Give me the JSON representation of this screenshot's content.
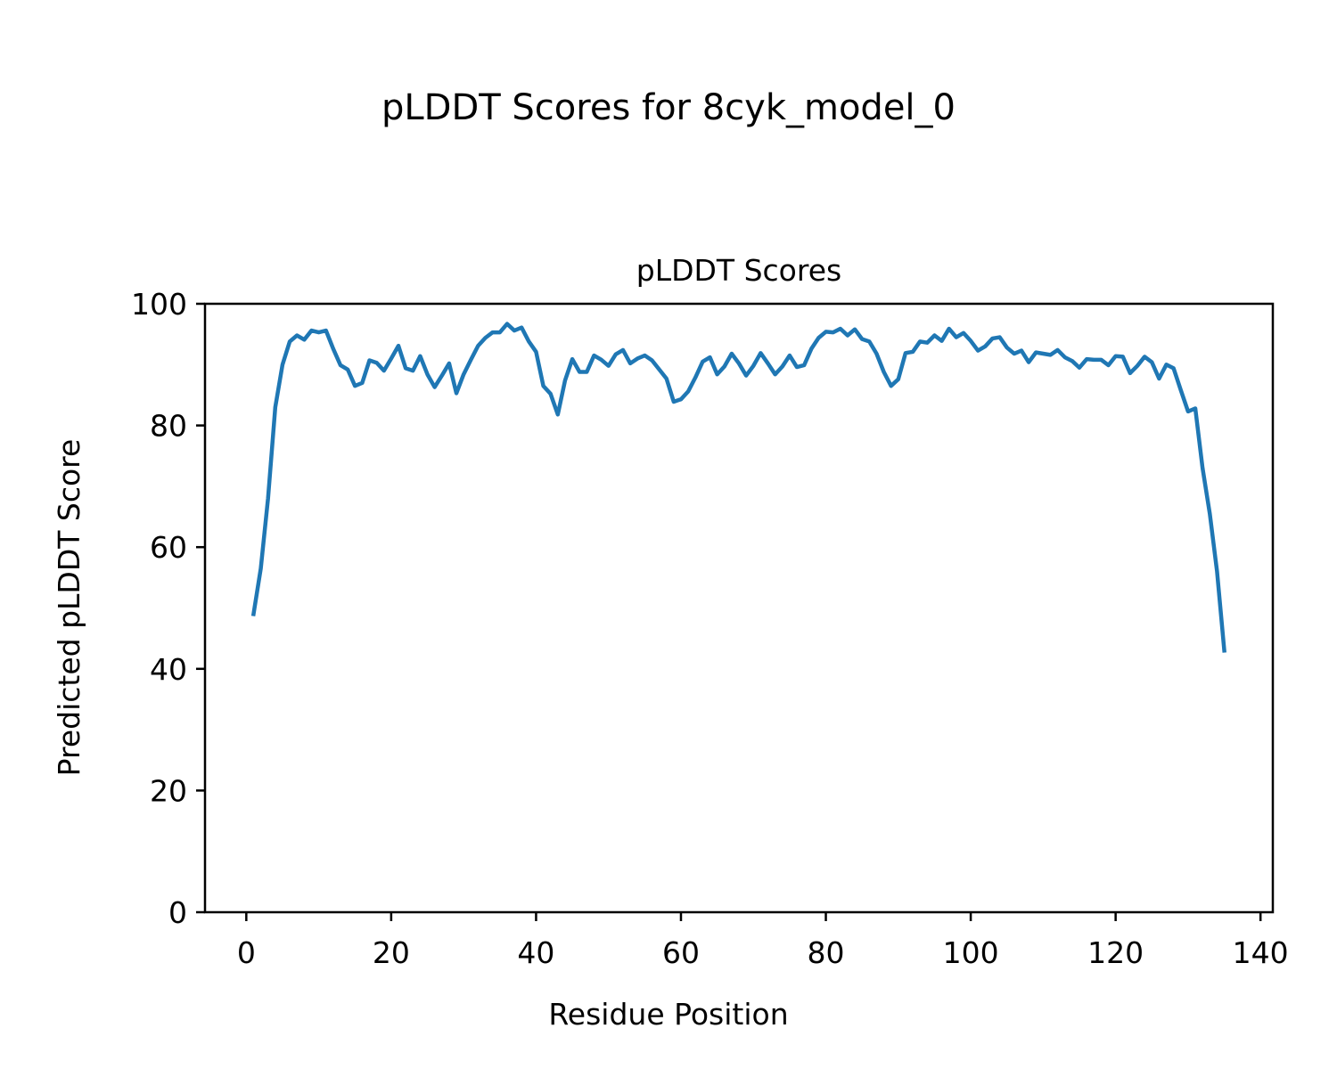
{
  "figure": {
    "suptitle": "pLDDT Scores for 8cyk_model_0"
  },
  "chart_data": {
    "type": "line",
    "title": "pLDDT Scores",
    "xlabel": "Residue Position",
    "ylabel": "Predicted pLDDT Score",
    "xlim": [
      -5.7,
      141.7
    ],
    "ylim": [
      0,
      100
    ],
    "xticks": [
      0,
      20,
      40,
      60,
      80,
      100,
      120,
      140
    ],
    "yticks": [
      0,
      20,
      40,
      60,
      80,
      100
    ],
    "grid": false,
    "line_color": "#1f77b4",
    "series": [
      {
        "x": [
          1,
          2,
          3,
          4,
          5,
          6,
          7,
          8,
          9,
          10,
          11,
          12,
          13,
          14,
          15,
          16,
          17,
          18,
          19,
          20,
          21,
          22,
          23,
          24,
          25,
          26,
          27,
          28,
          29,
          30,
          31,
          32,
          33,
          34,
          35,
          36,
          37,
          38,
          39,
          40,
          41,
          42,
          43,
          44,
          45,
          46,
          47,
          48,
          49,
          50,
          51,
          52,
          53,
          54,
          55,
          56,
          57,
          58,
          59,
          60,
          61,
          62,
          63,
          64,
          65,
          66,
          67,
          68,
          69,
          70,
          71,
          72,
          73,
          74,
          75,
          76,
          77,
          78,
          79,
          80,
          81,
          82,
          83,
          84,
          85,
          86,
          87,
          88,
          89,
          90,
          91,
          92,
          93,
          94,
          95,
          96,
          97,
          98,
          99,
          100,
          101,
          102,
          103,
          104,
          105,
          106,
          107,
          108,
          109,
          110,
          111,
          112,
          113,
          114,
          115,
          116,
          117,
          118,
          119,
          120,
          121,
          122,
          123,
          124,
          125,
          126,
          127,
          128,
          129,
          130,
          131,
          132,
          133,
          134,
          135
        ],
        "values": [
          49.0,
          56.5,
          68.0,
          83.0,
          90.0,
          93.8,
          94.8,
          94.1,
          95.6,
          95.3,
          95.6,
          92.6,
          89.9,
          89.2,
          86.5,
          87.0,
          90.7,
          90.3,
          89.0,
          91.0,
          93.1,
          89.4,
          89.0,
          91.4,
          88.4,
          86.3,
          88.2,
          90.2,
          85.3,
          88.4,
          90.8,
          93.1,
          94.4,
          95.3,
          95.3,
          96.7,
          95.6,
          96.1,
          93.8,
          92.1,
          86.5,
          85.2,
          81.8,
          87.4,
          90.9,
          88.8,
          88.8,
          91.5,
          90.8,
          89.8,
          91.7,
          92.4,
          90.2,
          91.0,
          91.5,
          90.7,
          89.2,
          87.7,
          83.9,
          84.3,
          85.6,
          87.9,
          90.5,
          91.2,
          88.4,
          89.7,
          91.8,
          90.2,
          88.2,
          89.8,
          91.9,
          90.2,
          88.4,
          89.7,
          91.5,
          89.6,
          89.9,
          92.6,
          94.4,
          95.4,
          95.3,
          95.9,
          94.8,
          95.8,
          94.2,
          93.8,
          91.8,
          88.8,
          86.5,
          87.6,
          91.9,
          92.1,
          93.8,
          93.6,
          94.8,
          93.9,
          95.9,
          94.5,
          95.2,
          93.9,
          92.3,
          93.0,
          94.3,
          94.5,
          92.8,
          91.8,
          92.3,
          90.4,
          92.0,
          91.8,
          91.6,
          92.4,
          91.2,
          90.6,
          89.5,
          90.9,
          90.8,
          90.8,
          89.9,
          91.4,
          91.3,
          88.6,
          89.8,
          91.3,
          90.4,
          87.7,
          90.0,
          89.4,
          85.8,
          82.3,
          82.8,
          73.0,
          65.5,
          56.0,
          43.0
        ]
      }
    ]
  }
}
